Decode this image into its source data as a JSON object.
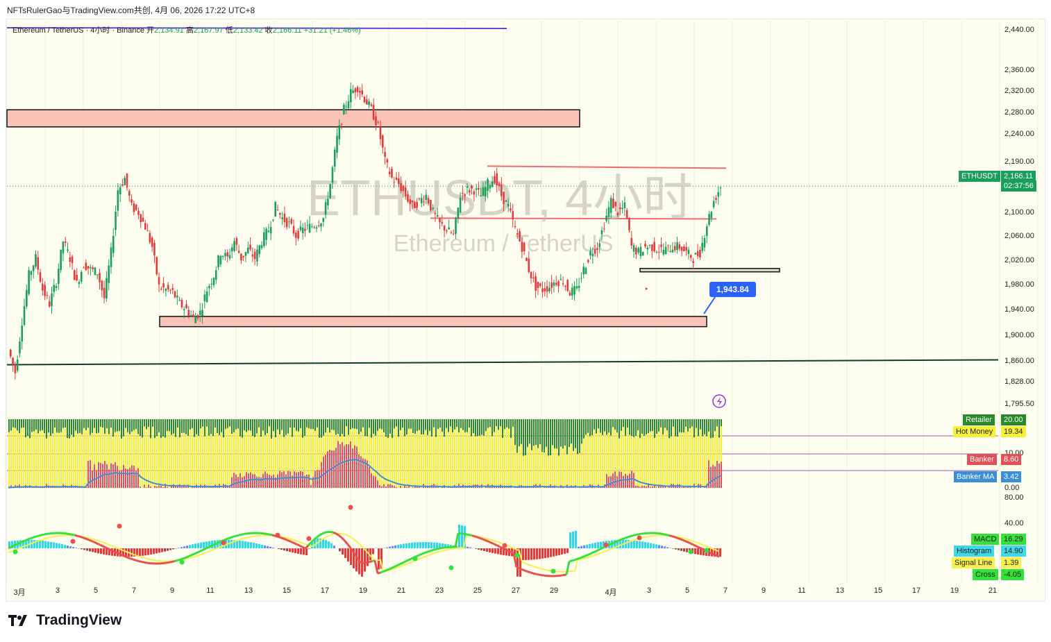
{
  "header": {
    "publisher": "NFTsRulerGao与TradingView.com共创",
    "date": "4月 06, 2026 17:22 UTC+8"
  },
  "legend": {
    "symbol_name": "Ethereum / TetherUS · 4小时 · Binance",
    "open_label": "开",
    "open": "2,134.91",
    "high_label": "高",
    "high": "2,167.97",
    "low_label": "低",
    "low": "2,133.42",
    "close_label": "收",
    "close": "2,166.11",
    "change": "+31.21 (+1.46%)"
  },
  "watermark": {
    "main": "ETHUSDT, 4小时",
    "sub": "Ethereum / TetherUS"
  },
  "price_label": {
    "symbol": "ETHUSDT",
    "price": "2,166.11",
    "countdown": "02:37:56"
  },
  "callout": {
    "value": "1,943.84"
  },
  "indicator1": {
    "retailer_label": "Retailer",
    "retailer_value": "20.00",
    "hotmoney_label": "Hot Money",
    "hotmoney_value": "19.34",
    "banker_label": "Banker",
    "banker_value": "8.60",
    "bankerma_label": "Banker MA",
    "bankerma_value": "3.42",
    "axis_top": "10.00",
    "axis_bottom": "0.00"
  },
  "indicator2": {
    "macd_label": "MACD",
    "macd_value": "16.29",
    "hist_label": "Histogram",
    "hist_value": "14.90",
    "signal_label": "Signal Line",
    "signal_value": "1.39",
    "cross_label": "Cross",
    "cross_value": "-4.05",
    "axis_top": "80.00",
    "axis_mid": "40.00"
  },
  "colors": {
    "up": "#1a9e5a",
    "down": "#e23b3b",
    "zone_fill": "#f9c3b8",
    "retailer": "#2a8a2a",
    "hotmoney": "#f7f03a",
    "banker": "#e0515a",
    "bankerma": "#3a8fd8",
    "macd_line": "#35e03a",
    "signal_line": "#f7f04a"
  },
  "brand": {
    "name": "TradingView"
  },
  "chart_data": {
    "type": "candlestick",
    "y_ticks": [
      "2,440.00",
      "2,360.00",
      "2,320.00",
      "2,280.00",
      "2,240.00",
      "2,190.00",
      "2,100.00",
      "2,060.00",
      "2,020.00",
      "1,980.00",
      "1,940.00",
      "1,900.00",
      "1,860.00",
      "1,828.00",
      "1,795.50"
    ],
    "x_ticks": [
      "3月",
      "3",
      "5",
      "7",
      "9",
      "11",
      "13",
      "15",
      "17",
      "19",
      "21",
      "23",
      "25",
      "27",
      "29",
      "4月",
      "3",
      "5",
      "7",
      "9",
      "11",
      "13",
      "15",
      "17",
      "19",
      "21"
    ],
    "close_path": [
      [
        0,
        1880
      ],
      [
        2,
        1840
      ],
      [
        4,
        1930
      ],
      [
        6,
        2010
      ],
      [
        8,
        2040
      ],
      [
        10,
        1985
      ],
      [
        12,
        1960
      ],
      [
        14,
        2000
      ],
      [
        16,
        2070
      ],
      [
        18,
        2040
      ],
      [
        20,
        1995
      ],
      [
        22,
        2030
      ],
      [
        24,
        2020
      ],
      [
        26,
        2015
      ],
      [
        28,
        1970
      ],
      [
        30,
        2050
      ],
      [
        32,
        2160
      ],
      [
        34,
        2180
      ],
      [
        36,
        2130
      ],
      [
        38,
        2120
      ],
      [
        40,
        2095
      ],
      [
        42,
        2060
      ],
      [
        44,
        1990
      ],
      [
        46,
        1985
      ],
      [
        48,
        1980
      ],
      [
        50,
        1960
      ],
      [
        52,
        1950
      ],
      [
        54,
        1935
      ],
      [
        56,
        1945
      ],
      [
        58,
        1985
      ],
      [
        60,
        2010
      ],
      [
        62,
        2050
      ],
      [
        64,
        2040
      ],
      [
        66,
        2070
      ],
      [
        68,
        2040
      ],
      [
        70,
        2055
      ],
      [
        72,
        2040
      ],
      [
        74,
        2070
      ],
      [
        76,
        2090
      ],
      [
        78,
        2130
      ],
      [
        80,
        2110
      ],
      [
        82,
        2100
      ],
      [
        84,
        2080
      ],
      [
        86,
        2090
      ],
      [
        88,
        2095
      ],
      [
        90,
        2100
      ],
      [
        92,
        2110
      ],
      [
        94,
        2170
      ],
      [
        96,
        2250
      ],
      [
        98,
        2300
      ],
      [
        100,
        2330
      ],
      [
        102,
        2340
      ],
      [
        104,
        2320
      ],
      [
        106,
        2300
      ],
      [
        108,
        2270
      ],
      [
        110,
        2210
      ],
      [
        112,
        2180
      ],
      [
        114,
        2170
      ],
      [
        116,
        2150
      ],
      [
        118,
        2130
      ],
      [
        120,
        2140
      ],
      [
        122,
        2150
      ],
      [
        124,
        2120
      ],
      [
        126,
        2100
      ],
      [
        128,
        2090
      ],
      [
        130,
        2080
      ],
      [
        132,
        2150
      ],
      [
        134,
        2160
      ],
      [
        136,
        2160
      ],
      [
        138,
        2150
      ],
      [
        140,
        2170
      ],
      [
        142,
        2180
      ],
      [
        144,
        2150
      ],
      [
        146,
        2130
      ],
      [
        148,
        2090
      ],
      [
        150,
        2060
      ],
      [
        152,
        2020
      ],
      [
        154,
        1990
      ],
      [
        156,
        1985
      ],
      [
        158,
        1990
      ],
      [
        160,
        2000
      ],
      [
        162,
        2000
      ],
      [
        164,
        1980
      ],
      [
        166,
        1985
      ],
      [
        168,
        2020
      ],
      [
        170,
        2050
      ],
      [
        172,
        2060
      ],
      [
        174,
        2100
      ],
      [
        176,
        2140
      ],
      [
        178,
        2120
      ],
      [
        180,
        2130
      ],
      [
        182,
        2060
      ],
      [
        184,
        2050
      ],
      [
        186,
        2060
      ],
      [
        188,
        2060
      ],
      [
        190,
        2055
      ],
      [
        192,
        2055
      ],
      [
        194,
        2060
      ],
      [
        196,
        2060
      ],
      [
        198,
        2050
      ],
      [
        200,
        2040
      ],
      [
        202,
        2050
      ],
      [
        204,
        2100
      ],
      [
        206,
        2140
      ],
      [
        208,
        2166.11
      ]
    ],
    "zones": [
      {
        "label": "supply",
        "top": 2300,
        "bottom": 2270
      },
      {
        "label": "demand_low",
        "top": 1938,
        "bottom": 1920
      },
      {
        "label": "demand_small",
        "top": 2022,
        "bottom": 2016
      }
    ],
    "resistance_lines": [
      2200,
      2110
    ],
    "support_line": 1857,
    "last_price": 2166.11,
    "callout_price": 1943.84
  }
}
